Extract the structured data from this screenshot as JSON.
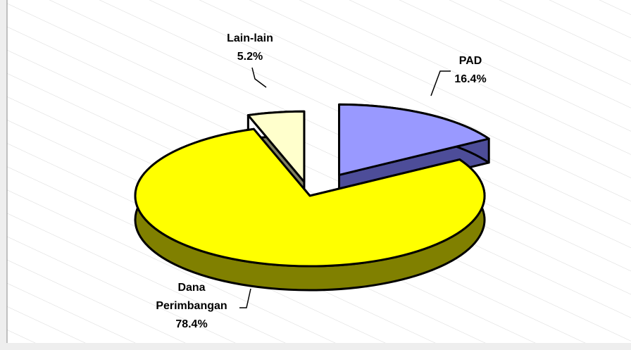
{
  "chart_data": {
    "type": "pie",
    "categories": [
      "PAD",
      "Dana Perimbangan",
      "Lain-lain"
    ],
    "values": [
      16.4,
      78.4,
      5.2
    ],
    "value_labels": [
      "16.4%",
      "78.4%",
      "5.2%"
    ],
    "colors": [
      "#9999ff",
      "#ffff00",
      "#ffffcc"
    ],
    "side_colors": [
      "#4d4d99",
      "#808000",
      "#7f7f60"
    ]
  }
}
